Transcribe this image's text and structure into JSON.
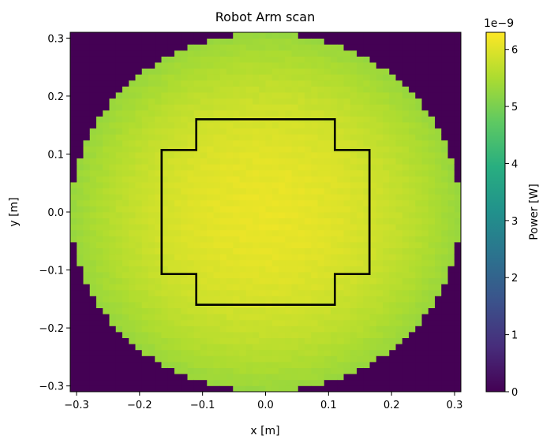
{
  "chart_data": {
    "type": "heatmap",
    "title": "Robot Arm scan",
    "xlabel": "x [m]",
    "ylabel": "y [m]",
    "xlim": [
      -0.31,
      0.31
    ],
    "ylim": [
      -0.31,
      0.31
    ],
    "x_ticks": [
      -0.3,
      -0.2,
      -0.1,
      0.0,
      0.1,
      0.2,
      0.3
    ],
    "x_tick_labels": [
      "−0.3",
      "−0.2",
      "−0.1",
      "0.0",
      "0.1",
      "0.2",
      "0.3"
    ],
    "y_ticks": [
      -0.3,
      -0.2,
      -0.1,
      0.0,
      0.1,
      0.2,
      0.3
    ],
    "y_tick_labels": [
      "−0.3",
      "−0.2",
      "−0.1",
      "0.0",
      "0.1",
      "0.2",
      "0.3"
    ],
    "grid": false,
    "scan": {
      "grid_points": 60,
      "circle_radius_m": 0.31,
      "center_value": 6.1e-09,
      "edge_value": 5.3e-09,
      "outside_value": 0
    },
    "outline": {
      "name": "cross-shaped outline",
      "vertices": [
        [
          -0.11,
          0.16
        ],
        [
          0.11,
          0.16
        ],
        [
          0.11,
          0.107
        ],
        [
          0.165,
          0.107
        ],
        [
          0.165,
          -0.107
        ],
        [
          0.11,
          -0.107
        ],
        [
          0.11,
          -0.16
        ],
        [
          -0.11,
          -0.16
        ],
        [
          -0.11,
          -0.107
        ],
        [
          -0.165,
          -0.107
        ],
        [
          -0.165,
          0.107
        ],
        [
          -0.11,
          0.107
        ]
      ]
    },
    "colorbar": {
      "label": "Power [W]",
      "multiplier": "1e−9",
      "min": 0,
      "max": 6.3,
      "ticks": [
        0,
        1,
        2,
        3,
        4,
        5,
        6
      ],
      "tick_labels": [
        "0",
        "1",
        "2",
        "3",
        "4",
        "5",
        "6"
      ],
      "colormap": "viridis"
    }
  }
}
